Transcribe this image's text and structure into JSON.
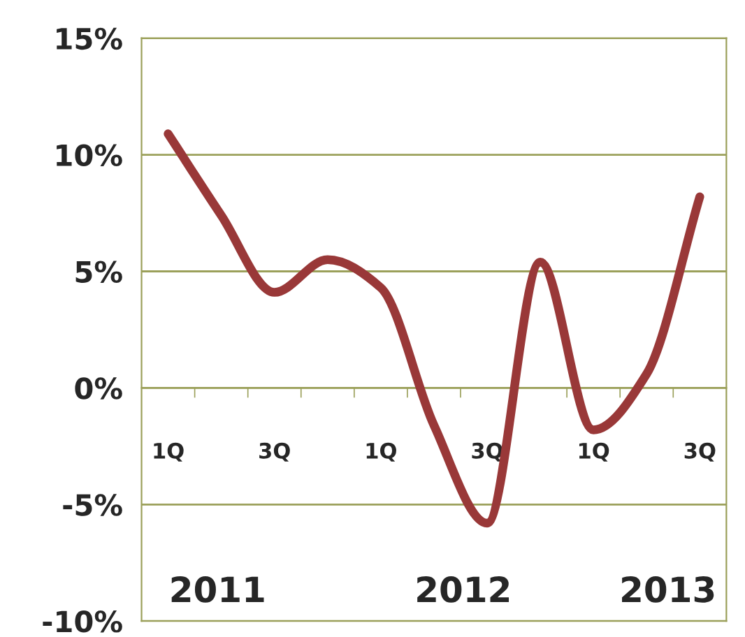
{
  "chart_data": {
    "type": "line",
    "categories": [
      "1Q",
      null,
      "3Q",
      null,
      "1Q",
      null,
      "3Q",
      null,
      "1Q",
      null,
      "3Q"
    ],
    "series": [
      {
        "color": "#993838",
        "values": [
          10.9,
          7.4,
          4.1,
          5.5,
          4.3,
          -1.6,
          -5.8,
          5.4,
          -1.8,
          0.6,
          8.2
        ]
      }
    ],
    "ylim": [
      -10,
      15
    ],
    "yticks": [
      {
        "value": -10,
        "label": "-10%"
      },
      {
        "value": -5,
        "label": "-5%"
      },
      {
        "value": 0,
        "label": "0%"
      },
      {
        "value": 5,
        "label": "5%"
      },
      {
        "value": 10,
        "label": "10%"
      },
      {
        "value": 15,
        "label": "15%"
      }
    ],
    "annotations": [
      "2011",
      "2012",
      "2013"
    ],
    "grid": "y",
    "legend": false,
    "marker": "none",
    "line_style": "solid"
  }
}
